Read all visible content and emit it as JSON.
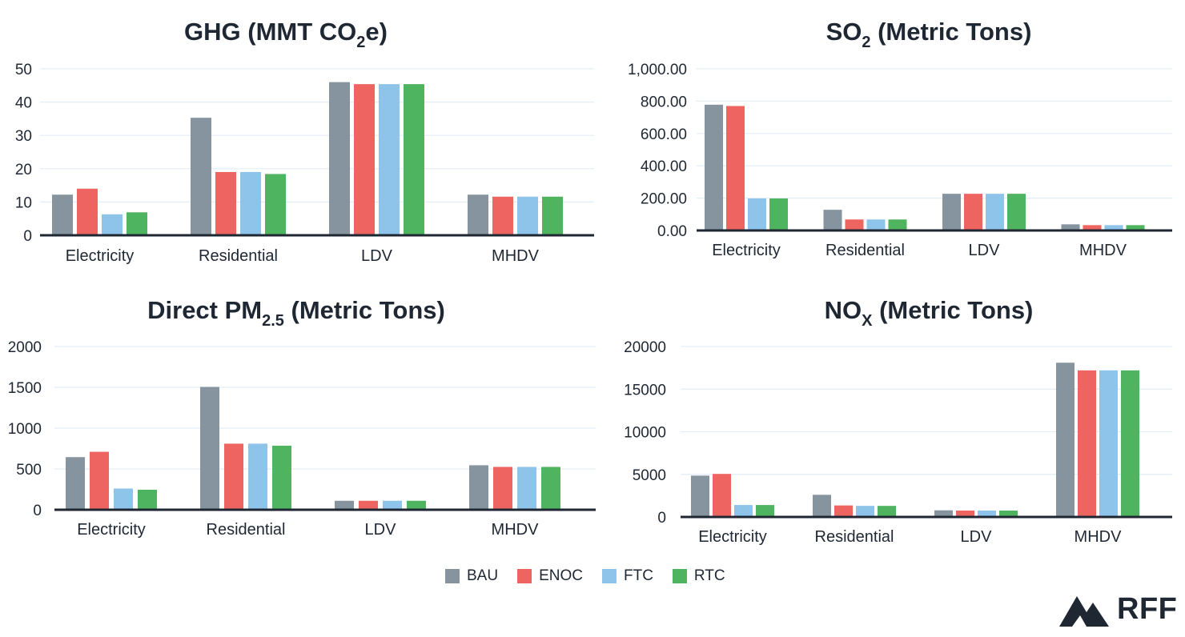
{
  "categories": [
    "Electricity",
    "Residential",
    "LDV",
    "MHDV"
  ],
  "legend": [
    {
      "name": "BAU",
      "color": "#86949f"
    },
    {
      "name": "ENOC",
      "color": "#ee6461"
    },
    {
      "name": "FTC",
      "color": "#8ec3ea"
    },
    {
      "name": "RTC",
      "color": "#4eb45f"
    }
  ],
  "brand": {
    "name": "RFF",
    "icon": "mountain-logo-icon"
  },
  "chart_data": [
    {
      "type": "bar",
      "title_main": "GHG (MMT CO",
      "title_sub": "2",
      "title_tail": "e)",
      "categories": [
        "Electricity",
        "Residential",
        "LDV",
        "MHDV"
      ],
      "ylim": [
        0,
        50
      ],
      "yticks": [
        0,
        10,
        20,
        30,
        40,
        50
      ],
      "ytick_labels": [
        "0",
        "10",
        "20",
        "30",
        "40",
        "50"
      ],
      "grid": true,
      "series": [
        {
          "name": "BAU",
          "values": [
            12.2,
            35.3,
            46.0,
            12.2
          ]
        },
        {
          "name": "ENOC",
          "values": [
            14.0,
            19.0,
            45.4,
            11.6
          ]
        },
        {
          "name": "FTC",
          "values": [
            6.3,
            19.0,
            45.4,
            11.6
          ]
        },
        {
          "name": "RTC",
          "values": [
            6.9,
            18.4,
            45.4,
            11.6
          ]
        }
      ]
    },
    {
      "type": "bar",
      "title_main": "SO",
      "title_sub": "2",
      "title_tail": " (Metric Tons)",
      "categories": [
        "Electricity",
        "Residential",
        "LDV",
        "MHDV"
      ],
      "ylim": [
        0,
        1000
      ],
      "yticks": [
        0,
        200,
        400,
        600,
        800,
        1000
      ],
      "ytick_labels": [
        "0.00",
        "200.00",
        "400.00",
        "600.00",
        "800.00",
        "1,000.00"
      ],
      "grid": true,
      "series": [
        {
          "name": "BAU",
          "values": [
            778,
            128,
            227,
            38
          ]
        },
        {
          "name": "ENOC",
          "values": [
            770,
            68,
            227,
            33
          ]
        },
        {
          "name": "FTC",
          "values": [
            198,
            68,
            227,
            33
          ]
        },
        {
          "name": "RTC",
          "values": [
            198,
            68,
            227,
            33
          ]
        }
      ]
    },
    {
      "type": "bar",
      "title_main": "Direct PM",
      "title_sub": "2.5",
      "title_tail": " (Metric Tons)",
      "categories": [
        "Electricity",
        "Residential",
        "LDV",
        "MHDV"
      ],
      "ylim": [
        0,
        2000
      ],
      "yticks": [
        0,
        500,
        1000,
        1500,
        2000
      ],
      "ytick_labels": [
        "0",
        "500",
        "1000",
        "1500",
        "2000"
      ],
      "grid": true,
      "series": [
        {
          "name": "BAU",
          "values": [
            645,
            1505,
            110,
            545
          ]
        },
        {
          "name": "ENOC",
          "values": [
            710,
            810,
            110,
            525
          ]
        },
        {
          "name": "FTC",
          "values": [
            260,
            810,
            110,
            525
          ]
        },
        {
          "name": "RTC",
          "values": [
            245,
            785,
            110,
            525
          ]
        }
      ]
    },
    {
      "type": "bar",
      "title_main": "NO",
      "title_sub": "X",
      "title_tail": " (Metric Tons)",
      "categories": [
        "Electricity",
        "Residential",
        "LDV",
        "MHDV"
      ],
      "ylim": [
        0,
        20000
      ],
      "yticks": [
        0,
        5000,
        10000,
        15000,
        20000
      ],
      "ytick_labels": [
        "0",
        "5000",
        "10000",
        "15000",
        "20000"
      ],
      "grid": true,
      "series": [
        {
          "name": "BAU",
          "values": [
            4850,
            2600,
            780,
            18100
          ]
        },
        {
          "name": "ENOC",
          "values": [
            5050,
            1350,
            750,
            17200
          ]
        },
        {
          "name": "FTC",
          "values": [
            1400,
            1300,
            750,
            17200
          ]
        },
        {
          "name": "RTC",
          "values": [
            1400,
            1300,
            750,
            17200
          ]
        }
      ]
    }
  ]
}
